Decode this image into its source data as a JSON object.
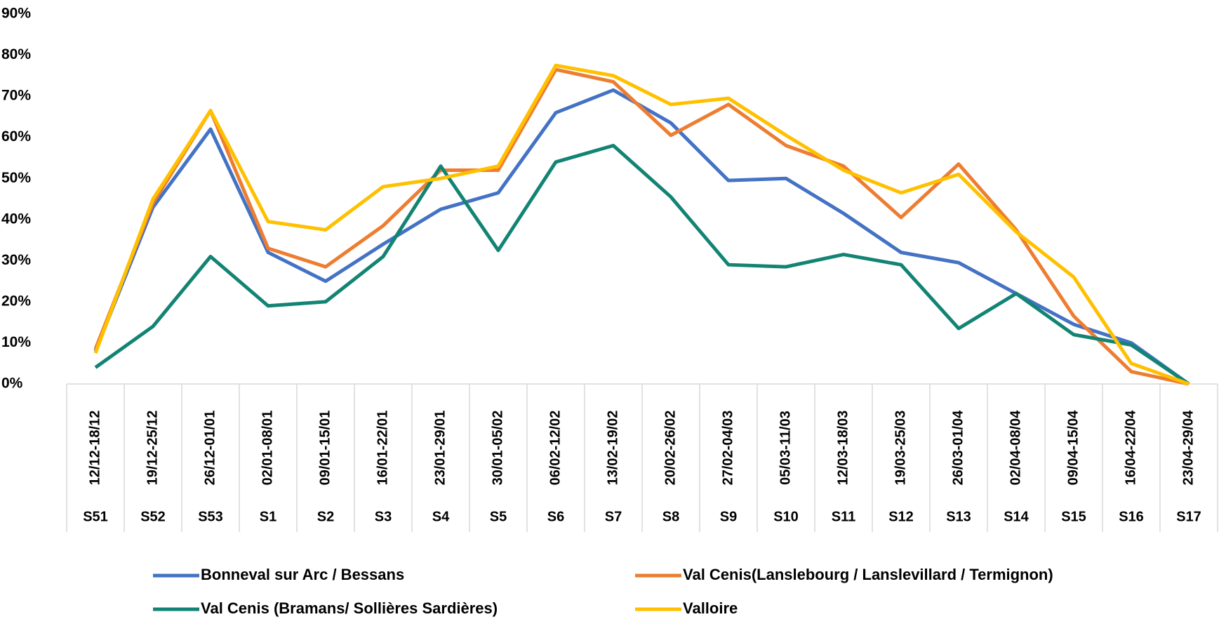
{
  "chart_data": {
    "type": "line",
    "categories": [
      "12/12-18/12",
      "19/12-25/12",
      "26/12-01/01",
      "02/01-08/01",
      "09/01-15/01",
      "16/01-22/01",
      "23/01-29/01",
      "30/01-05/02",
      "06/02-12/02",
      "13/02-19/02",
      "20/02-26/02",
      "27/02-04/03",
      "05/03-11/03",
      "12/03-18/03",
      "19/03-25/03",
      "26/03-01/04",
      "02/04-08/04",
      "09/04-15/04",
      "16/04-22/04",
      "23/04-29/04"
    ],
    "weeks": [
      "S51",
      "S52",
      "S53",
      "S1",
      "S2",
      "S3",
      "S4",
      "S5",
      "S6",
      "S7",
      "S8",
      "S9",
      "S10",
      "S11",
      "S12",
      "S13",
      "S14",
      "S15",
      "S16",
      "S17"
    ],
    "series": [
      {
        "name": "Bonneval sur Arc / Bessans",
        "color": "#4472c4",
        "values": [
          8,
          43,
          62,
          32,
          25,
          34,
          42.5,
          46.5,
          66,
          71.5,
          63.5,
          49.5,
          50,
          41.5,
          32,
          29.5,
          22,
          14.5,
          10,
          0
        ]
      },
      {
        "name": "Val Cenis(Lanslebourg / Lanslevillard / Termignon)",
        "color": "#ed7d31",
        "values": [
          8.5,
          44,
          66.5,
          33,
          28.5,
          38.5,
          52,
          52,
          76.5,
          73.5,
          60.5,
          68,
          58,
          53,
          40.5,
          53.5,
          37.5,
          16.5,
          3,
          0
        ]
      },
      {
        "name": "Val Cenis (Bramans/ Sollières Sardières)",
        "color": "#138374",
        "values": [
          4,
          14,
          31,
          19,
          20,
          31,
          53,
          32.5,
          54,
          58,
          45.5,
          29,
          28.5,
          31.5,
          29,
          13.5,
          22,
          12,
          9.5,
          0
        ]
      },
      {
        "name": "Valloire",
        "color": "#ffc000",
        "values": [
          7.5,
          45,
          66.5,
          39.5,
          37.5,
          48,
          50,
          53,
          77.5,
          75,
          68,
          69.5,
          60.5,
          52,
          46.5,
          51,
          37,
          26,
          5,
          0
        ]
      }
    ],
    "ylim": [
      0,
      90
    ],
    "yticks": [
      {
        "value": 0,
        "label": "0%"
      },
      {
        "value": 10,
        "label": "10%"
      },
      {
        "value": 20,
        "label": "20%"
      },
      {
        "value": 30,
        "label": "30%"
      },
      {
        "value": 40,
        "label": "40%"
      },
      {
        "value": 50,
        "label": "50%"
      },
      {
        "value": 60,
        "label": "60%"
      },
      {
        "value": 70,
        "label": "70%"
      },
      {
        "value": 80,
        "label": "80%"
      },
      {
        "value": 90,
        "label": "90%"
      }
    ],
    "grid": false
  }
}
